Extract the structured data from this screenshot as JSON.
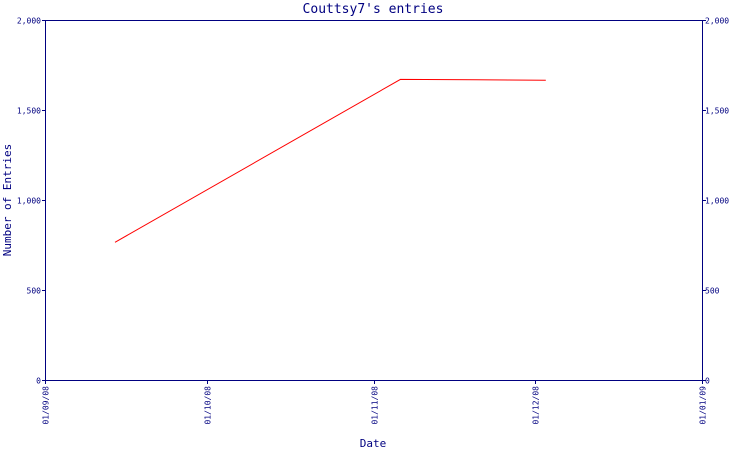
{
  "chart_data": {
    "type": "line",
    "title": "Couttsy7's entries",
    "xlabel": "Date",
    "ylabel": "Number of Entries",
    "x_ticks": [
      "01/09/08",
      "01/10/08",
      "01/11/08",
      "01/12/08",
      "01/01/09"
    ],
    "xlim": [
      "2008-09-01",
      "2009-01-01"
    ],
    "y_ticks": [
      "0",
      "500",
      "1,000",
      "1,500",
      "2,000"
    ],
    "y_tick_values": [
      0,
      500,
      1000,
      1500,
      2000
    ],
    "ylim": [
      0,
      2000
    ],
    "y_axis_right_mirror": true,
    "grid": false,
    "series": [
      {
        "color": "#ff0000",
        "points": [
          {
            "x": "2008-09-14",
            "y": 765
          },
          {
            "x": "2008-11-06",
            "y": 1670
          },
          {
            "x": "2008-11-20",
            "y": 1668
          },
          {
            "x": "2008-12-03",
            "y": 1665
          }
        ]
      }
    ],
    "colors": {
      "axis": "#000080",
      "text": "#000080",
      "series": "#ff0000",
      "background": "#ffffff"
    }
  }
}
